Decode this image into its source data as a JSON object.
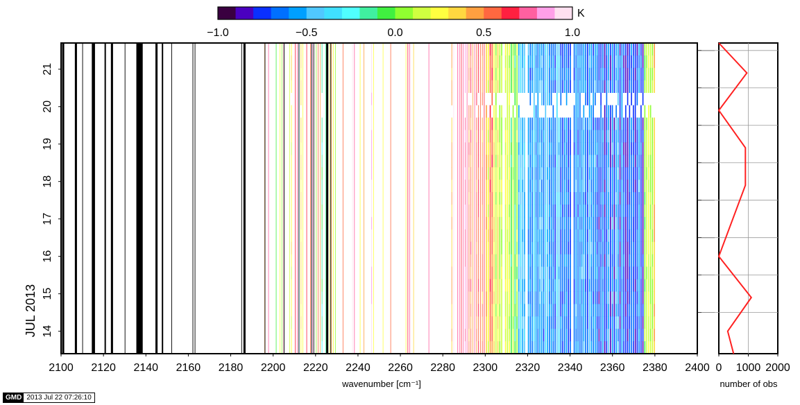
{
  "chart_data": {
    "type": "heatmap",
    "colorbar": {
      "unit": "K",
      "range": [
        -1.0,
        1.0
      ],
      "ticks": [
        "−1.0",
        "−0.5",
        "0.0",
        "0.5",
        "1.0"
      ],
      "tick_values": [
        -1.0,
        -0.5,
        0.0,
        0.5,
        1.0
      ],
      "colors": [
        "#3a0040",
        "#4a00c0",
        "#0a30ff",
        "#0070ff",
        "#00a0ff",
        "#50c8ff",
        "#40e0ff",
        "#50ffff",
        "#40f0a0",
        "#40f040",
        "#90ff30",
        "#d0ff40",
        "#ffff40",
        "#ffd840",
        "#ffa040",
        "#ff6840",
        "#ff2040",
        "#ff60a0",
        "#ffa0e8",
        "#ffe0f0"
      ]
    },
    "main_panel": {
      "xlabel": "wavenumber [cm⁻¹]",
      "xlim": [
        2100,
        2400
      ],
      "xticks": [
        2100,
        2120,
        2140,
        2160,
        2180,
        2200,
        2220,
        2240,
        2260,
        2280,
        2300,
        2320,
        2340,
        2360,
        2380,
        2400
      ],
      "ylabel": "JUL 2013",
      "ylim": [
        13.4,
        21.7
      ],
      "yticks": [
        14,
        15,
        16,
        17,
        18,
        19,
        20,
        21
      ],
      "black_bands": [
        [
          2100.5,
          2101.5
        ],
        [
          2106.5,
          2107.5
        ],
        [
          2114.5,
          2116
        ],
        [
          2120.5,
          2121
        ],
        [
          2123.5,
          2124.5
        ],
        [
          2135.5,
          2138.5
        ],
        [
          2144.5,
          2145.5
        ],
        [
          2147.5,
          2148
        ],
        [
          2186,
          2187
        ],
        [
          2225,
          2226
        ]
      ],
      "data_range": [
        2195,
        2380
      ],
      "missing_row_day": 20.2
    },
    "side_panel": {
      "xlabel": "number of obs",
      "xlim": [
        0,
        2000
      ],
      "xticks": [
        "0",
        "1000",
        "2000"
      ],
      "series": [
        {
          "x": [
            0,
            950,
            0,
            900,
            900,
            0,
            1100,
            300,
            500
          ],
          "y": [
            21.7,
            20.9,
            19.9,
            18.9,
            17.9,
            16.0,
            14.9,
            14.0,
            13.4
          ]
        }
      ],
      "line_color": "#ff2020"
    }
  },
  "footer": {
    "logo": "GMD",
    "timestamp": "2013 Jul 22 07:26:10"
  }
}
